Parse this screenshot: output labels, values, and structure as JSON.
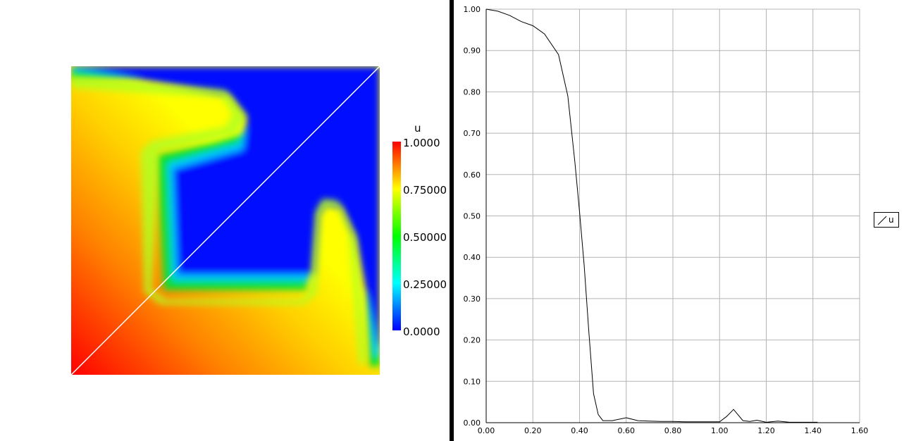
{
  "colorbar": {
    "title": "u",
    "ticks": [
      "1.0000",
      "0.75000",
      "0.50000",
      "0.25000",
      "0.0000"
    ],
    "colors": [
      "#ff0000",
      "#ffff00",
      "#00ff00",
      "#00ffff",
      "#0000ff"
    ]
  },
  "chart_data": {
    "type": "line",
    "title": "",
    "xlabel": "",
    "ylabel": "",
    "xlim": [
      0,
      1.6
    ],
    "ylim": [
      0,
      1.0
    ],
    "xticks": [
      "0.00",
      "0.20",
      "0.40",
      "0.60",
      "0.80",
      "1.00",
      "1.20",
      "1.40",
      "1.60"
    ],
    "yticks": [
      "0.00",
      "0.10",
      "0.20",
      "0.30",
      "0.40",
      "0.50",
      "0.60",
      "0.70",
      "0.80",
      "0.90",
      "1.00"
    ],
    "grid": true,
    "legend_position": "right",
    "series": [
      {
        "name": "u",
        "color": "#000000",
        "x": [
          0.0,
          0.05,
          0.1,
          0.15,
          0.2,
          0.25,
          0.31,
          0.35,
          0.38,
          0.4,
          0.42,
          0.44,
          0.46,
          0.48,
          0.5,
          0.52,
          0.54,
          0.6,
          0.65,
          0.7,
          0.75,
          0.8,
          0.85,
          0.9,
          0.95,
          1.0,
          1.03,
          1.06,
          1.1,
          1.13,
          1.16,
          1.2,
          1.25,
          1.3,
          1.35,
          1.4,
          1.42
        ],
        "y": [
          1.0,
          0.995,
          0.985,
          0.97,
          0.96,
          0.94,
          0.89,
          0.79,
          0.63,
          0.51,
          0.38,
          0.22,
          0.07,
          0.02,
          0.005,
          0.005,
          0.005,
          0.012,
          0.005,
          0.004,
          0.003,
          0.003,
          0.002,
          0.002,
          0.002,
          0.002,
          0.015,
          0.032,
          0.005,
          0.003,
          0.006,
          0.001,
          0.004,
          0.001,
          0.001,
          0.001,
          0.001
        ]
      }
    ]
  },
  "legend": {
    "label": "u"
  }
}
